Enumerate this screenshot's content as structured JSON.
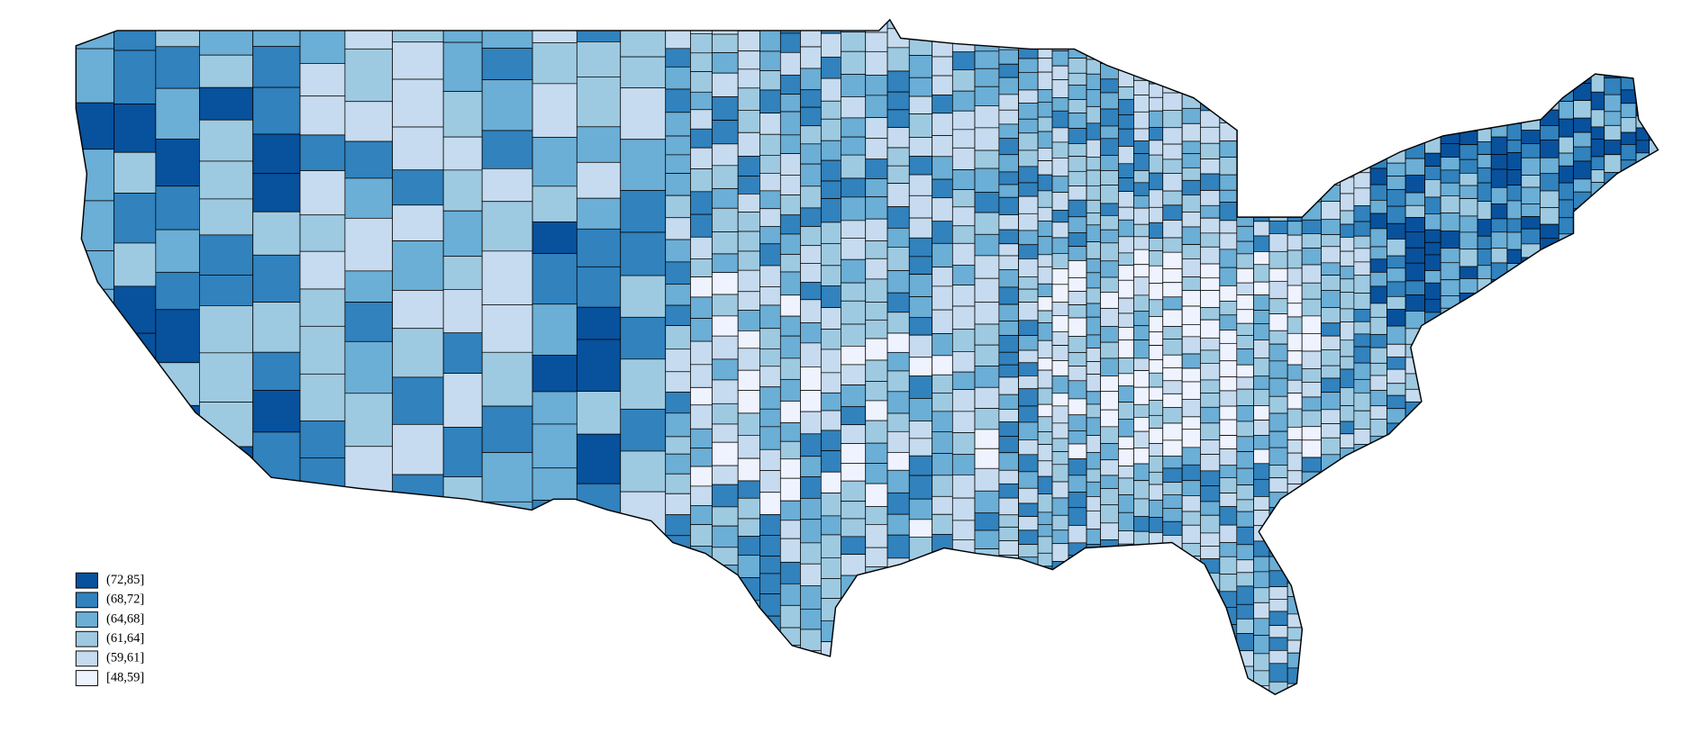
{
  "map": {
    "legend": [
      {
        "label": "(72,85]",
        "color": "#08519c"
      },
      {
        "label": "(68,72]",
        "color": "#3182bd"
      },
      {
        "label": "(64,68]",
        "color": "#6baed6"
      },
      {
        "label": "(61,64]",
        "color": "#9ecae1"
      },
      {
        "label": "(59,61]",
        "color": "#c6dbef"
      },
      {
        "label": "[48,59]",
        "color": "#eff3ff"
      }
    ]
  }
}
